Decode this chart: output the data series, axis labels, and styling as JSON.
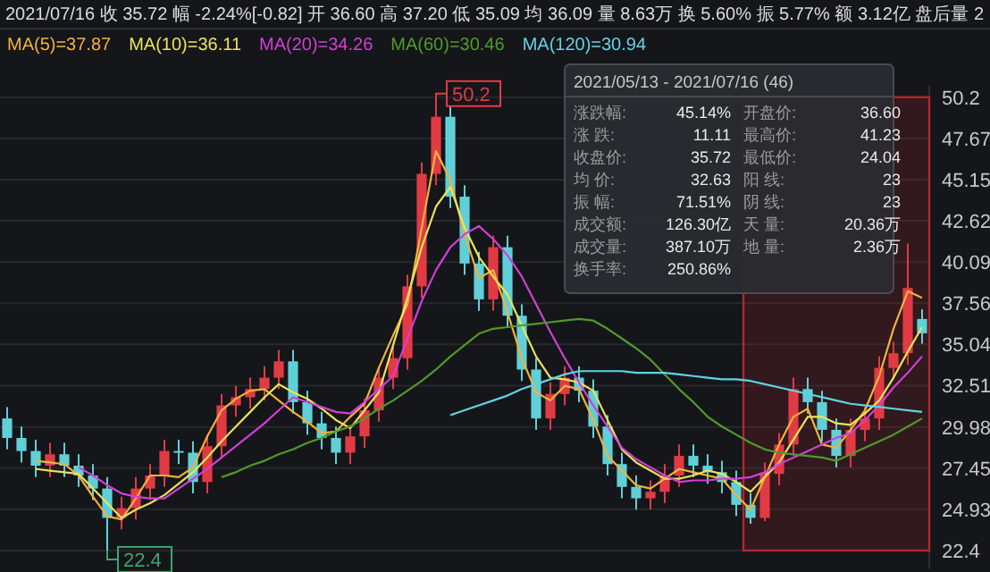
{
  "chart_data": {
    "type": "candlestick",
    "title": "2021/07/16  收 35.72  幅 -2.24%[-0.82]  开 36.60  高 37.20  低 35.09  均 36.09  量 8.63万  换 5.60%  振 5.77%  额 3.12亿  盘后量 2",
    "subtitle": "2021/05/13 - 2021/07/16  (46)",
    "categories": [
      null,
      null,
      null,
      null,
      null,
      null,
      null,
      null,
      null,
      null,
      null,
      null,
      null,
      null,
      null,
      null,
      null,
      null,
      null,
      null,
      null,
      null,
      null,
      null,
      null,
      null,
      null,
      null,
      null,
      null,
      null,
      null,
      null,
      null,
      null,
      null,
      null,
      null,
      null,
      null,
      null,
      null,
      null,
      null,
      null,
      null,
      null,
      null,
      null,
      null,
      null,
      null,
      null,
      null,
      null,
      null,
      null,
      null,
      null,
      null,
      null,
      null,
      null,
      null,
      null
    ],
    "ohlc": [
      [
        30.5,
        31.2,
        28.6,
        29.3
      ],
      [
        29.3,
        30.0,
        27.8,
        28.5
      ],
      [
        28.5,
        29.2,
        26.9,
        27.6
      ],
      [
        27.6,
        29.0,
        26.9,
        28.3
      ],
      [
        28.3,
        29.0,
        26.9,
        27.6
      ],
      [
        27.6,
        28.3,
        26.3,
        27.0
      ],
      [
        27.0,
        27.7,
        25.5,
        26.2
      ],
      [
        26.2,
        26.9,
        22.4,
        24.4
      ],
      [
        24.4,
        25.7,
        23.7,
        25.0
      ],
      [
        25.0,
        26.9,
        24.3,
        26.2
      ],
      [
        26.2,
        27.7,
        25.5,
        27.0
      ],
      [
        27.0,
        29.2,
        26.3,
        28.5
      ],
      [
        28.5,
        29.2,
        27.7,
        28.4
      ],
      [
        28.4,
        29.1,
        25.9,
        26.6
      ],
      [
        26.6,
        29.5,
        25.9,
        28.8
      ],
      [
        28.8,
        32.0,
        28.1,
        31.3
      ],
      [
        31.3,
        32.5,
        30.6,
        31.8
      ],
      [
        31.8,
        33.0,
        31.1,
        32.3
      ],
      [
        32.3,
        33.7,
        31.6,
        33.0
      ],
      [
        33.0,
        34.7,
        32.3,
        34.0
      ],
      [
        34.0,
        34.7,
        30.8,
        31.5
      ],
      [
        31.5,
        32.2,
        29.5,
        30.2
      ],
      [
        30.2,
        30.9,
        28.6,
        29.3
      ],
      [
        29.3,
        30.0,
        27.7,
        28.4
      ],
      [
        28.4,
        30.1,
        27.7,
        29.4
      ],
      [
        29.4,
        31.7,
        28.7,
        31.0
      ],
      [
        31.0,
        33.7,
        30.3,
        33.0
      ],
      [
        33.0,
        34.9,
        32.3,
        34.2
      ],
      [
        34.2,
        39.3,
        33.5,
        38.6
      ],
      [
        38.6,
        46.2,
        37.9,
        45.5
      ],
      [
        45.5,
        50.2,
        44.8,
        49.0
      ],
      [
        49.0,
        49.7,
        43.4,
        44.1
      ],
      [
        44.1,
        44.8,
        39.3,
        40.0
      ],
      [
        40.0,
        40.7,
        37.1,
        37.8
      ],
      [
        37.8,
        41.7,
        37.1,
        41.0
      ],
      [
        41.0,
        41.7,
        36.1,
        36.8
      ],
      [
        36.8,
        37.5,
        32.8,
        33.5
      ],
      [
        33.5,
        34.2,
        29.8,
        30.5
      ],
      [
        30.5,
        32.7,
        29.8,
        32.0
      ],
      [
        32.0,
        33.7,
        31.3,
        33.0
      ],
      [
        33.0,
        33.7,
        31.5,
        32.2
      ],
      [
        32.2,
        32.9,
        29.3,
        30.0
      ],
      [
        30.0,
        30.7,
        27.0,
        27.7
      ],
      [
        27.7,
        28.4,
        25.6,
        26.3
      ],
      [
        26.3,
        27.0,
        24.9,
        25.6
      ],
      [
        25.6,
        26.7,
        24.9,
        26.0
      ],
      [
        26.0,
        27.7,
        25.3,
        27.0
      ],
      [
        27.0,
        28.9,
        26.3,
        28.2
      ],
      [
        28.2,
        28.9,
        26.9,
        27.6
      ],
      [
        27.6,
        28.3,
        26.5,
        27.2
      ],
      [
        27.2,
        27.9,
        25.9,
        26.6
      ],
      [
        26.6,
        27.3,
        24.5,
        25.2
      ],
      [
        25.2,
        25.9,
        24.04,
        24.4
      ],
      [
        24.4,
        27.8,
        24.2,
        27.1
      ],
      [
        27.1,
        29.6,
        26.4,
        28.9
      ],
      [
        28.9,
        33.0,
        28.2,
        32.3
      ],
      [
        32.3,
        33.0,
        30.8,
        31.5
      ],
      [
        31.5,
        32.2,
        29.1,
        29.8
      ],
      [
        29.8,
        30.5,
        27.5,
        28.2
      ],
      [
        28.2,
        30.5,
        27.5,
        29.8
      ],
      [
        29.8,
        31.2,
        29.1,
        30.5
      ],
      [
        30.5,
        34.3,
        29.8,
        33.6
      ],
      [
        33.6,
        35.2,
        32.9,
        34.5
      ],
      [
        34.5,
        41.23,
        33.8,
        38.5
      ],
      [
        36.6,
        37.2,
        35.09,
        35.72
      ]
    ],
    "series": [
      {
        "name": "MA(5)=37.87",
        "color": "#f2b13c",
        "type": "line",
        "values": [
          null,
          null,
          27.9,
          27.8,
          27.7,
          27.0,
          25.7,
          24.5,
          24.3,
          25.6,
          27.0,
          27.0,
          26.9,
          27.5,
          29.4,
          31.0,
          31.7,
          32.2,
          32.3,
          31.6,
          30.9,
          30.3,
          29.6,
          29.7,
          30.6,
          31.4,
          33.6,
          35.6,
          37.5,
          42.2,
          46.9,
          45.1,
          41.8,
          39.1,
          39.6,
          37.0,
          34.2,
          32.1,
          31.6,
          32.5,
          32.3,
          30.4,
          28.2,
          27.3,
          26.4,
          26.2,
          26.8,
          27.4,
          27.2,
          27.0,
          26.8,
          25.8,
          24.9,
          26.9,
          28.9,
          30.6,
          31.1,
          28.9,
          28.7,
          29.8,
          31.0,
          33.1,
          36.0,
          38.3,
          37.9
        ]
      },
      {
        "name": "MA(10)=36.11",
        "color": "#e8e35c",
        "type": "line",
        "values": [
          null,
          null,
          27.4,
          27.3,
          27.2,
          27.1,
          26.2,
          25.3,
          24.4,
          24.9,
          25.3,
          25.8,
          26.5,
          27.2,
          28.1,
          29.1,
          30.0,
          30.9,
          31.8,
          32.6,
          32.1,
          31.7,
          31.1,
          30.4,
          29.9,
          31.0,
          32.1,
          35.0,
          37.9,
          41.0,
          43.5,
          44.7,
          42.2,
          40.4,
          39.2,
          38.1,
          36.2,
          34.3,
          33.0,
          32.9,
          32.7,
          32.2,
          30.4,
          28.6,
          27.8,
          27.3,
          26.8,
          26.8,
          27.0,
          27.3,
          27.1,
          26.6,
          26.0,
          26.9,
          27.8,
          29.2,
          30.6,
          30.6,
          30.2,
          30.1,
          30.8,
          31.6,
          33.0,
          34.6,
          36.1
        ]
      },
      {
        "name": "MA(20)=34.26",
        "color": "#d23fd6",
        "type": "line",
        "values": [
          null,
          null,
          null,
          null,
          null,
          27.5,
          27.0,
          26.4,
          25.9,
          25.7,
          25.6,
          25.6,
          26.2,
          26.8,
          27.4,
          28.1,
          28.8,
          29.5,
          30.2,
          31.0,
          31.8,
          31.5,
          31.2,
          30.9,
          30.8,
          31.5,
          32.3,
          33.1,
          35.4,
          37.7,
          39.6,
          41.0,
          41.8,
          42.3,
          41.5,
          40.5,
          39.2,
          37.5,
          35.8,
          34.2,
          32.7,
          31.3,
          30.0,
          28.7,
          28.0,
          27.5,
          27.0,
          26.6,
          26.7,
          26.7,
          26.8,
          26.8,
          26.9,
          27.2,
          27.7,
          28.1,
          28.5,
          28.9,
          29.3,
          29.6,
          30.4,
          31.3,
          32.4,
          33.3,
          34.3
        ]
      },
      {
        "name": "MA(60)=30.46",
        "color": "#4f9a2c",
        "type": "line",
        "values": [
          null,
          null,
          null,
          null,
          null,
          null,
          null,
          null,
          null,
          null,
          null,
          null,
          null,
          null,
          null,
          26.9,
          27.2,
          27.6,
          27.9,
          28.3,
          28.6,
          29.0,
          29.3,
          29.7,
          30.0,
          30.5,
          31.1,
          31.6,
          32.2,
          32.8,
          33.5,
          34.3,
          35.0,
          35.7,
          36.0,
          36.1,
          36.2,
          36.3,
          36.4,
          36.5,
          36.6,
          36.5,
          36.0,
          35.4,
          34.8,
          34.1,
          33.2,
          32.3,
          31.5,
          30.6,
          30.0,
          29.5,
          29.0,
          28.6,
          28.4,
          28.3,
          28.2,
          28.1,
          27.9,
          28.3,
          28.7,
          29.1,
          29.5,
          30.0,
          30.5
        ]
      },
      {
        "name": "MA(120)=30.94",
        "color": "#62d3e3",
        "type": "line",
        "values": [
          null,
          null,
          null,
          null,
          null,
          null,
          null,
          null,
          null,
          null,
          null,
          null,
          null,
          null,
          null,
          null,
          null,
          null,
          null,
          null,
          null,
          null,
          null,
          null,
          null,
          null,
          null,
          null,
          null,
          null,
          null,
          30.7,
          31.0,
          31.3,
          31.6,
          31.9,
          32.3,
          32.6,
          32.9,
          33.2,
          33.4,
          33.4,
          33.4,
          33.4,
          33.3,
          33.3,
          33.3,
          33.2,
          33.1,
          33.0,
          32.9,
          32.9,
          32.8,
          32.6,
          32.4,
          32.2,
          32.0,
          31.8,
          31.6,
          31.4,
          31.3,
          31.2,
          31.1,
          31.0,
          30.9
        ]
      }
    ],
    "ylim": [
      21.3,
      50.9
    ],
    "yticks": [
      22.4,
      24.93,
      27.45,
      29.98,
      32.51,
      35.04,
      37.56,
      40.09,
      42.62,
      45.15,
      47.67,
      50.2
    ],
    "grid": "y",
    "legend": "top",
    "tick_labels": "y",
    "annotations": [
      "50.2",
      "22.4",
      "涨跌幅: 45.14%",
      "开盘价: 36.60",
      "涨 跌: 11.11",
      "最高价: 41.23",
      "收盘价: 35.72",
      "最低价: 24.04",
      "均 价: 32.63",
      "阳 线: 23",
      "振 幅: 71.51%",
      "阴 线: 23",
      "成交额: 126.30亿",
      "天 量: 20.36万",
      "成交量: 387.10万",
      "地 量: 2.36万",
      "换手率: 250.86%"
    ]
  }
}
